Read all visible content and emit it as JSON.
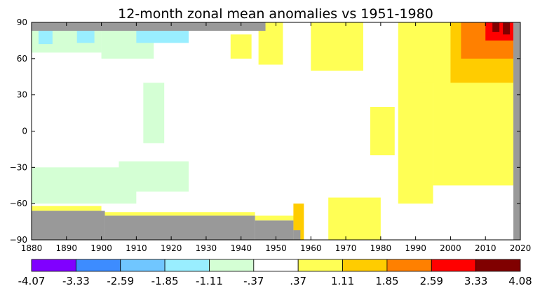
{
  "chart_data": {
    "type": "heatmap",
    "title": "12-month zonal mean anomalies vs 1951-1980",
    "xlabel": "",
    "ylabel": "",
    "xlim": [
      1880,
      2020
    ],
    "ylim": [
      -90,
      90
    ],
    "x_ticks": [
      "1880",
      "1890",
      "1900",
      "1910",
      "1920",
      "1930",
      "1940",
      "1950",
      "1960",
      "1970",
      "1980",
      "1990",
      "2000",
      "2010",
      "2020"
    ],
    "y_ticks": [
      "90",
      "60",
      "30",
      "0",
      "−30",
      "−60",
      "−90"
    ],
    "grid": false,
    "colorbar": {
      "placement": "bottom",
      "boundaries": [
        "-4.07",
        "-3.33",
        "-2.59",
        "-1.85",
        "-1.11",
        "-.37",
        ".37",
        "1.11",
        "1.85",
        "2.59",
        "3.33",
        "4.08"
      ],
      "colors": [
        "#8000ff",
        "#3d8cff",
        "#70c6ff",
        "#99eeff",
        "#d4ffd4",
        "#ffffff",
        "#ffff55",
        "#ffcc00",
        "#ff8000",
        "#ff0000",
        "#800000"
      ]
    },
    "missing_data_color": "#999999",
    "missing_data_regions": [
      {
        "x": [
          1880,
          1947
        ],
        "y": [
          83,
          90
        ]
      },
      {
        "x": [
          1880,
          1901
        ],
        "y": [
          -90,
          -66
        ]
      },
      {
        "x": [
          1901,
          1944
        ],
        "y": [
          -90,
          -70
        ]
      },
      {
        "x": [
          1944,
          1955
        ],
        "y": [
          -90,
          -74
        ]
      },
      {
        "x": [
          1955,
          1957
        ],
        "y": [
          -90,
          -82
        ]
      },
      {
        "x": [
          2018,
          2020
        ],
        "y": [
          -90,
          90
        ]
      }
    ],
    "anomaly_regions": [
      {
        "x": [
          1880,
          1900
        ],
        "y": [
          65,
          83
        ],
        "value": -0.8
      },
      {
        "x": [
          1882,
          1886
        ],
        "y": [
          72,
          83
        ],
        "value": -1.5
      },
      {
        "x": [
          1893,
          1898
        ],
        "y": [
          73,
          83
        ],
        "value": -1.3
      },
      {
        "x": [
          1900,
          1915
        ],
        "y": [
          60,
          83
        ],
        "value": -0.7
      },
      {
        "x": [
          1910,
          1925
        ],
        "y": [
          73,
          83
        ],
        "value": -1.2
      },
      {
        "x": [
          1880,
          1910
        ],
        "y": [
          -60,
          -30
        ],
        "value": -0.5
      },
      {
        "x": [
          1905,
          1925
        ],
        "y": [
          -50,
          -25
        ],
        "value": -0.5
      },
      {
        "x": [
          1912,
          1918
        ],
        "y": [
          -10,
          40
        ],
        "value": -0.4
      },
      {
        "x": [
          1880,
          1900
        ],
        "y": [
          -66,
          -62
        ],
        "value": 0.8
      },
      {
        "x": [
          1900,
          1944
        ],
        "y": [
          -70,
          -67
        ],
        "value": 0.7
      },
      {
        "x": [
          1944,
          1956
        ],
        "y": [
          -74,
          -70
        ],
        "value": 0.8
      },
      {
        "x": [
          1937,
          1943
        ],
        "y": [
          60,
          80
        ],
        "value": 0.5
      },
      {
        "x": [
          1945,
          1952
        ],
        "y": [
          55,
          90
        ],
        "value": 0.6
      },
      {
        "x": [
          1955,
          1958
        ],
        "y": [
          -90,
          -60
        ],
        "value": 1.3
      },
      {
        "x": [
          1960,
          1975
        ],
        "y": [
          50,
          90
        ],
        "value": 0.6
      },
      {
        "x": [
          1965,
          1980
        ],
        "y": [
          -90,
          -55
        ],
        "value": 0.5
      },
      {
        "x": [
          1977,
          1984
        ],
        "y": [
          -20,
          20
        ],
        "value": 0.5
      },
      {
        "x": [
          1985,
          1995
        ],
        "y": [
          -60,
          90
        ],
        "value": 0.6
      },
      {
        "x": [
          1990,
          1996
        ],
        "y": [
          40,
          90
        ],
        "value": 1.0
      },
      {
        "x": [
          1995,
          2018
        ],
        "y": [
          -45,
          90
        ],
        "value": 0.8
      },
      {
        "x": [
          2000,
          2018
        ],
        "y": [
          40,
          90
        ],
        "value": 1.2
      },
      {
        "x": [
          2003,
          2018
        ],
        "y": [
          60,
          90
        ],
        "value": 1.9
      },
      {
        "x": [
          2010,
          2018
        ],
        "y": [
          75,
          90
        ],
        "value": 2.7
      },
      {
        "x": [
          2012,
          2014
        ],
        "y": [
          82,
          90
        ],
        "value": 3.5
      },
      {
        "x": [
          2015,
          2017
        ],
        "y": [
          80,
          90
        ],
        "value": 3.6
      }
    ]
  }
}
